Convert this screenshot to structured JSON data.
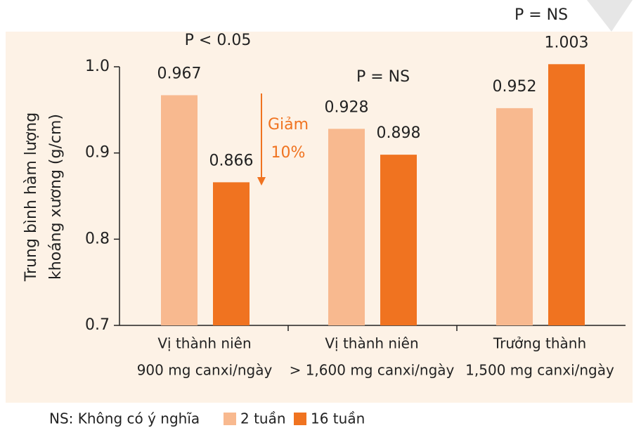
{
  "chart_data": {
    "type": "bar",
    "y_label": [
      "Trung bình hàm lượng",
      "khoáng xương (g/cm)"
    ],
    "categories": [
      [
        "Vị thành niên",
        "900 mg canxi/ngày"
      ],
      [
        "Vị thành niên",
        "> 1,600 mg canxi/ngày"
      ],
      [
        "Trưởng thành",
        "1,500 mg canxi/ngày"
      ]
    ],
    "series": [
      {
        "name": "2 tuần",
        "color": "#f8b98f",
        "values": [
          0.967,
          0.928,
          0.952
        ]
      },
      {
        "name": "16 tuần",
        "color": "#f07320",
        "values": [
          0.866,
          0.898,
          1.003
        ]
      }
    ],
    "ylim": [
      0.7,
      1.0
    ],
    "yticks": [
      0.7,
      0.8,
      0.9,
      {
        "value": 1.0,
        "label": "1.0"
      }
    ],
    "annotations": [
      "P < 0.05",
      "P = NS",
      "P = NS"
    ],
    "reduction": [
      "Giảm",
      "10%"
    ],
    "note": "NS: Không có ý nghĩa"
  }
}
